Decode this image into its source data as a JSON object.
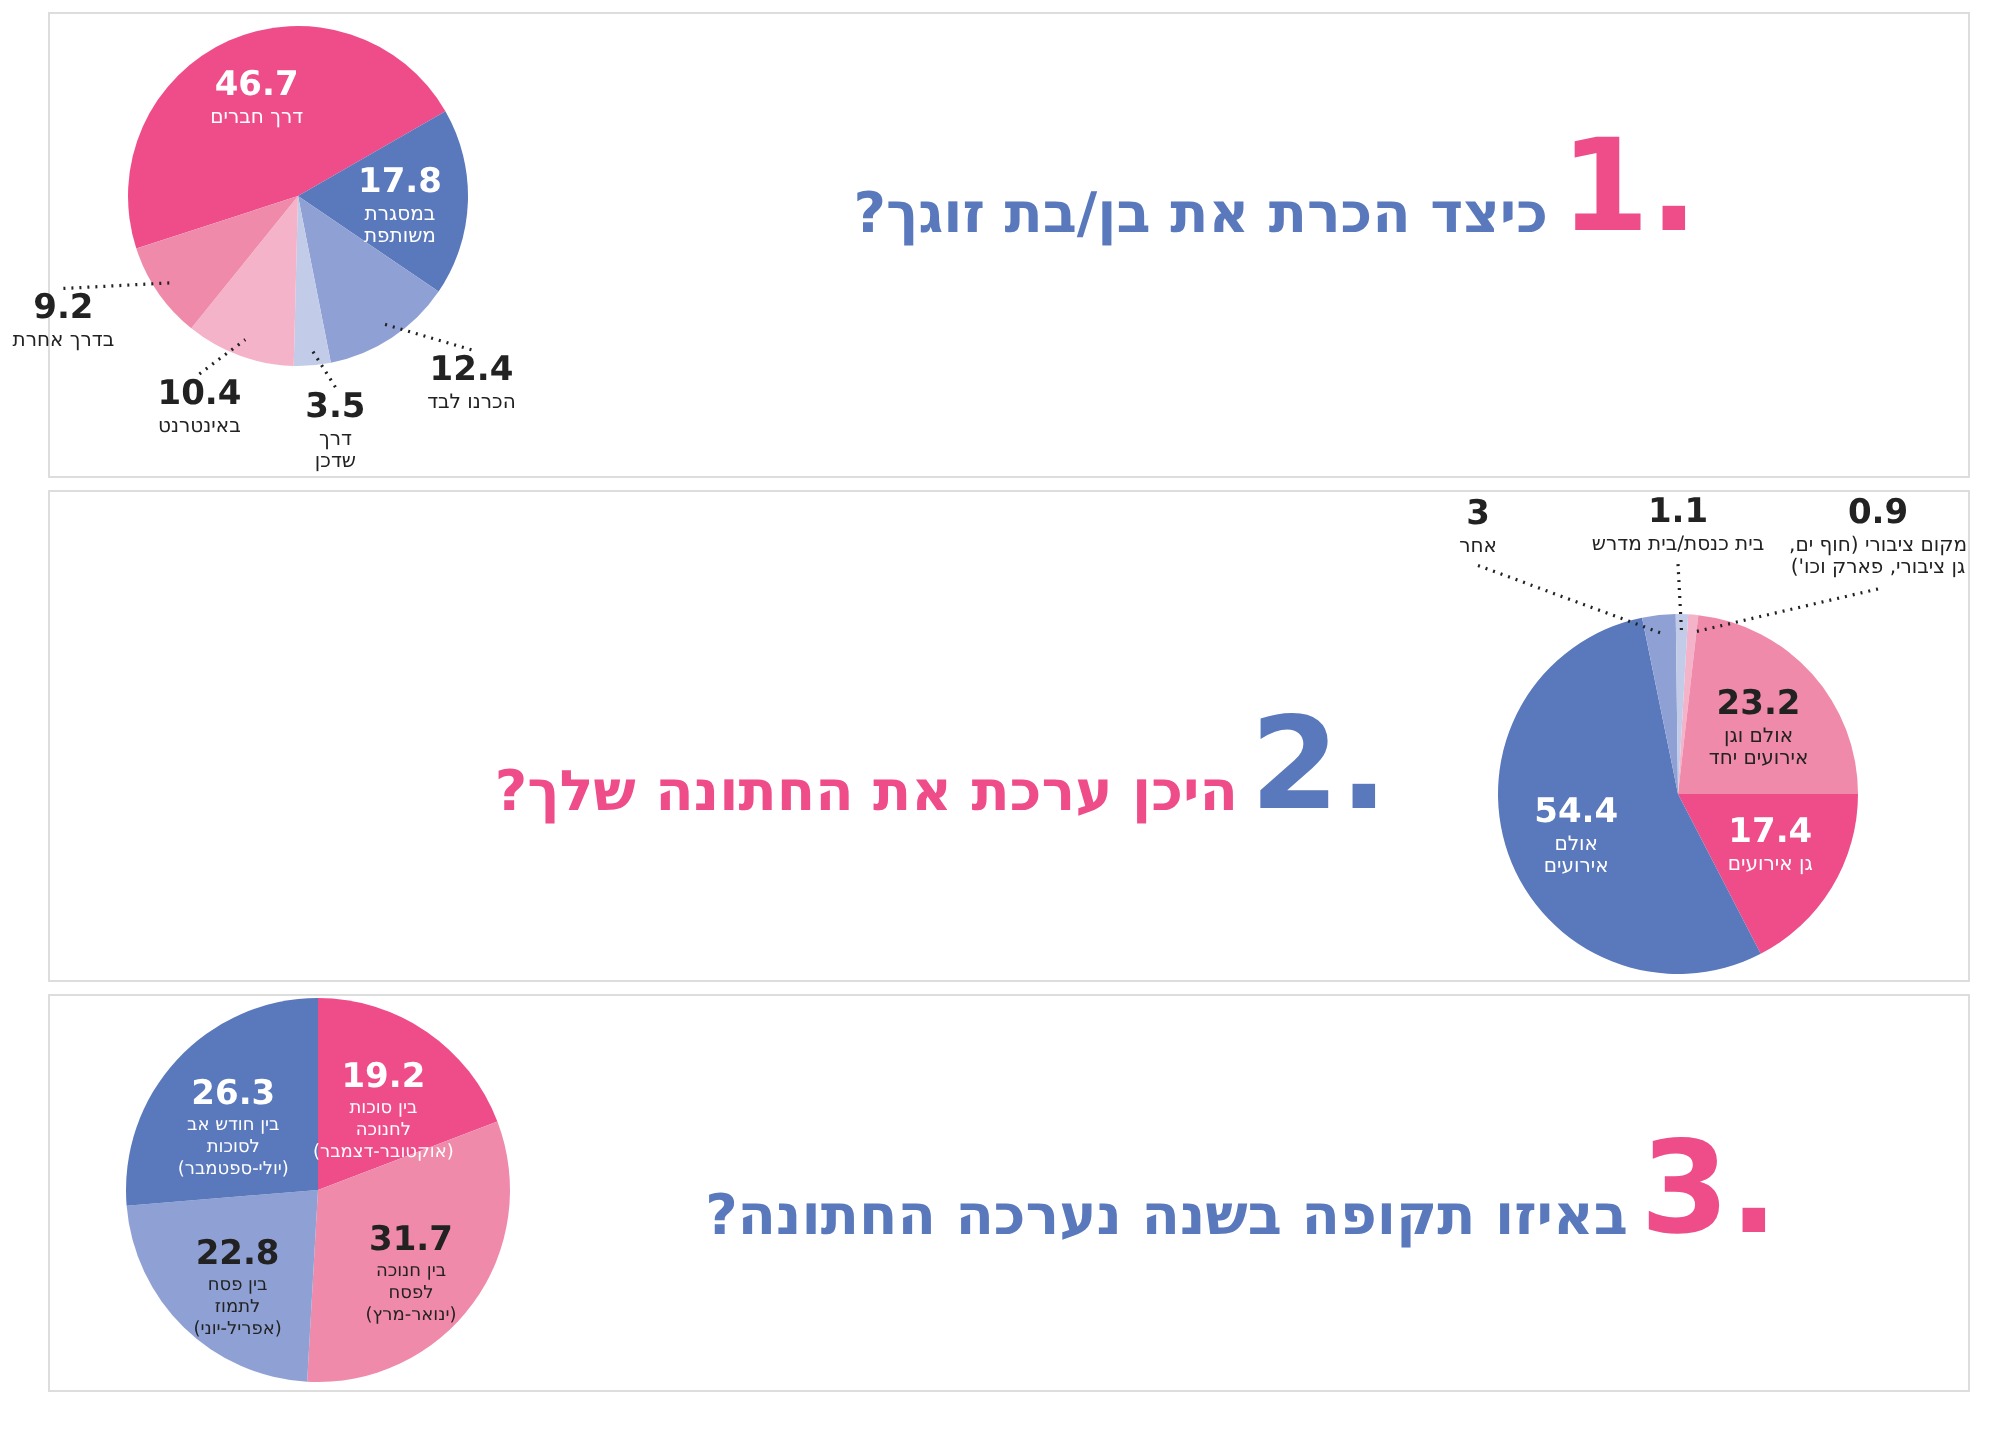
{
  "chart_data": [
    {
      "type": "pie",
      "title": "1.",
      "subtitle": "כיצד הכרת את בן/בת זוגך?",
      "categories": [
        "דרך חברים",
        "במסגרת\nמשותפת",
        "הכרנו לבד",
        "דרך\nשדכן",
        "באינטרנט",
        "בדרך אחרת"
      ],
      "values": [
        46.7,
        17.8,
        12.4,
        3.5,
        10.4,
        9.2
      ],
      "colors": [
        "#ee4d8a",
        "#5a78bc",
        "#8fa0d4",
        "#c2cbe8",
        "#f5b3c9",
        "#f08aaa"
      ],
      "data_labels": true
    },
    {
      "type": "pie",
      "title": "2.",
      "subtitle": "היכן ערכת את החתונה שלך?",
      "categories": [
        "מקום ציבורי (חוף ים,\nגן ציבורי, פארק וכו')",
        "אולם וגן\nאירועים יחד",
        "גן אירועים",
        "אולם\nאירועים",
        "אחר",
        "בית כנסת/בית מדרש"
      ],
      "values": [
        0.9,
        23.2,
        17.4,
        54.4,
        3,
        1.1
      ],
      "colors": [
        "#f5b3c9",
        "#f08aaa",
        "#ee4d8a",
        "#5a78bc",
        "#8fa0d4",
        "#c2cbe8"
      ],
      "data_labels": true
    },
    {
      "type": "pie",
      "title": "3.",
      "subtitle": "באיזו תקופה בשנה נערכה החתונה?",
      "categories": [
        "בין סוכות\nלחנוכה\n(אוקטובר-דצמבר)",
        "בין חנוכה\nלפסח\n(ינואר-מרץ)",
        "בין פסח\nלתמוז\n(אפריל-יוני)",
        "בין חודש אב\nלסוכות\n(יולי-ספטמבר)"
      ],
      "values": [
        19.2,
        31.7,
        22.8,
        26.3
      ],
      "colors": [
        "#ee4d8a",
        "#f08aaa",
        "#8fa0d4",
        "#5a78bc"
      ],
      "data_labels": true
    }
  ]
}
